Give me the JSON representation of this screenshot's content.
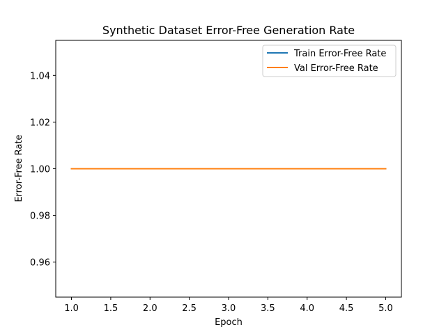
{
  "chart_data": {
    "type": "line",
    "title": "Synthetic Dataset Error-Free Generation Rate",
    "xlabel": "Epoch",
    "ylabel": "Error-Free Rate",
    "xlim": [
      0.8,
      5.2
    ],
    "ylim": [
      0.945,
      1.055
    ],
    "x_ticks": [
      "1.0",
      "1.5",
      "2.0",
      "2.5",
      "3.0",
      "3.5",
      "4.0",
      "4.5",
      "5.0"
    ],
    "y_ticks": [
      "0.96",
      "0.98",
      "1.00",
      "1.02",
      "1.04"
    ],
    "grid": false,
    "legend_position": "upper-right",
    "x": [
      1,
      2,
      3,
      4,
      5
    ],
    "series": [
      {
        "name": "Train Error-Free Rate",
        "color": "#1f77b4",
        "values": [
          1.0,
          1.0,
          1.0,
          1.0,
          1.0
        ]
      },
      {
        "name": "Val Error-Free Rate",
        "color": "#ff7f0e",
        "values": [
          1.0,
          1.0,
          1.0,
          1.0,
          1.0
        ]
      }
    ]
  }
}
